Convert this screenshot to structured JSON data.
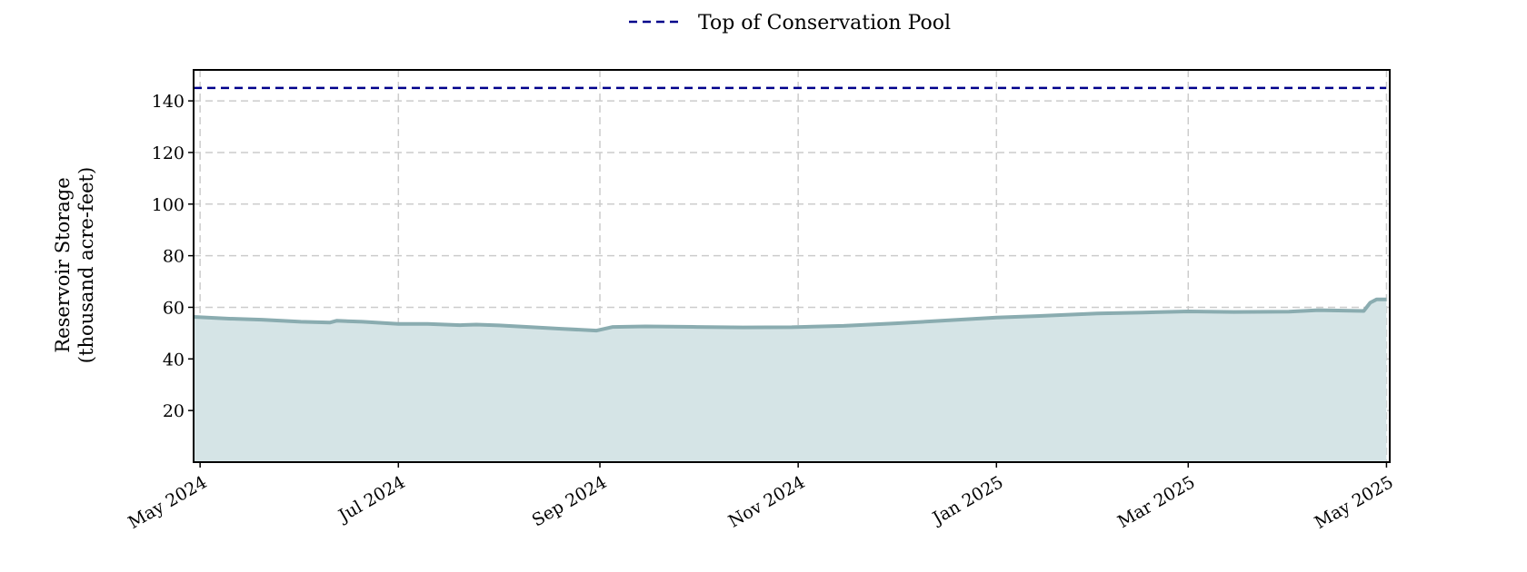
{
  "chart_data": {
    "type": "area",
    "title": "",
    "xlabel": "",
    "ylabel_lines": [
      "Reservoir Storage",
      "(thousand acre-feet)"
    ],
    "x_ticks": [
      {
        "date": "2024-05-01",
        "label": "May 2024"
      },
      {
        "date": "2024-07-01",
        "label": "Jul 2024"
      },
      {
        "date": "2024-09-01",
        "label": "Sep 2024"
      },
      {
        "date": "2024-11-01",
        "label": "Nov 2024"
      },
      {
        "date": "2025-01-01",
        "label": "Jan 2025"
      },
      {
        "date": "2025-03-01",
        "label": "Mar 2025"
      },
      {
        "date": "2025-05-01",
        "label": "May 2025"
      }
    ],
    "xlim": [
      "2024-04-29",
      "2025-05-02"
    ],
    "y_ticks": [
      20,
      40,
      60,
      80,
      100,
      120,
      140
    ],
    "ylim": [
      0,
      152
    ],
    "grid": true,
    "legend_position": "top-center",
    "series": [
      {
        "name": "",
        "kind": "area",
        "color": "#8aacb0",
        "fill_color": "#d5e4e6",
        "x": [
          "2024-04-29",
          "2024-05-10",
          "2024-05-20",
          "2024-06-01",
          "2024-06-10",
          "2024-06-12",
          "2024-06-20",
          "2024-07-01",
          "2024-07-10",
          "2024-07-20",
          "2024-07-25",
          "2024-08-01",
          "2024-08-10",
          "2024-08-20",
          "2024-08-31",
          "2024-09-05",
          "2024-09-15",
          "2024-10-01",
          "2024-10-15",
          "2024-10-30",
          "2024-11-15",
          "2024-12-01",
          "2024-12-15",
          "2025-01-01",
          "2025-01-15",
          "2025-02-01",
          "2025-02-15",
          "2025-03-01",
          "2025-03-15",
          "2025-04-01",
          "2025-04-10",
          "2025-04-24",
          "2025-04-26",
          "2025-04-28",
          "2025-05-01"
        ],
        "values": [
          56.3,
          55.6,
          55.2,
          54.4,
          54.1,
          54.8,
          54.4,
          53.6,
          53.6,
          53.1,
          53.3,
          53.0,
          52.4,
          51.7,
          51.0,
          52.4,
          52.6,
          52.4,
          52.2,
          52.3,
          52.8,
          53.8,
          54.8,
          56.0,
          56.7,
          57.6,
          58.0,
          58.4,
          58.2,
          58.3,
          58.9,
          58.6,
          61.8,
          63.1,
          63.1
        ]
      }
    ],
    "reference_lines": [
      {
        "name": "Top of Conservation Pool",
        "value": 145,
        "color": "#00008b",
        "style": "dashed"
      }
    ],
    "legend": [
      "Top of Conservation Pool"
    ]
  }
}
